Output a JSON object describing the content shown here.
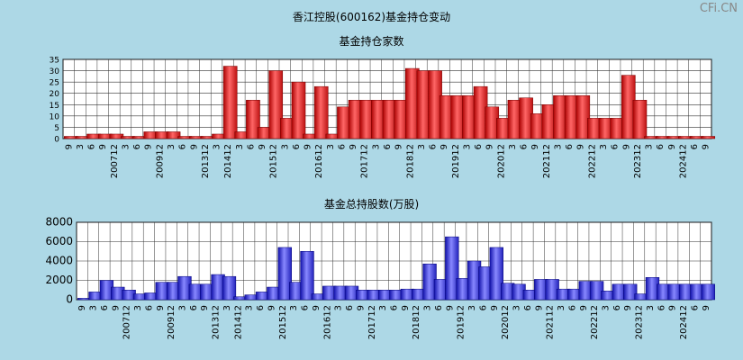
{
  "page": {
    "title": "香江控股(600162)基金持仓变动",
    "brand": "CFi.CN",
    "bg_color": "#add8e6"
  },
  "chart_data": [
    {
      "type": "bar",
      "title": "基金持仓家数",
      "ylim": [
        0,
        35
      ],
      "yticks": [
        0,
        5,
        10,
        15,
        20,
        25,
        30,
        35
      ],
      "grid": true,
      "color": "#ee3333",
      "x": [
        "9",
        "3",
        "6",
        "9",
        "200712",
        "3",
        "6",
        "9",
        "200912",
        "3",
        "6",
        "9",
        "201312",
        "3",
        "201412",
        "3",
        "6",
        "9",
        "201512",
        "3",
        "6",
        "9",
        "201612",
        "3",
        "6",
        "9",
        "201712",
        "3",
        "6",
        "9",
        "201812",
        "3",
        "6",
        "9",
        "201912",
        "3",
        "6",
        "9",
        "202012",
        "3",
        "6",
        "9",
        "202112",
        "3",
        "6",
        "9",
        "202212",
        "3",
        "6",
        "9",
        "202312",
        "3",
        "6",
        "9",
        "202412",
        "6",
        "9"
      ],
      "values": [
        1,
        1,
        2,
        2,
        2,
        1,
        1,
        3,
        3,
        3,
        1,
        1,
        1,
        2,
        32,
        3,
        17,
        5,
        30,
        9,
        25,
        2,
        23,
        2,
        14,
        17,
        17,
        17,
        17,
        17,
        31,
        30,
        30,
        19,
        19,
        19,
        23,
        14,
        9,
        17,
        18,
        11,
        15,
        19,
        19,
        19,
        9,
        9,
        9,
        28,
        17,
        1,
        1,
        1,
        1,
        1,
        1
      ],
      "xlabel_rule": "every tick"
    },
    {
      "type": "bar",
      "title": "基金总持股数(万股)",
      "ylim": [
        0,
        8000
      ],
      "yticks": [
        0,
        2000,
        4000,
        6000,
        8000
      ],
      "grid": true,
      "color": "#4444dd",
      "x": [
        "9",
        "3",
        "6",
        "9",
        "200712",
        "3",
        "6",
        "9",
        "200912",
        "3",
        "6",
        "9",
        "201312",
        "3",
        "201412",
        "3",
        "6",
        "9",
        "201512",
        "3",
        "6",
        "9",
        "201612",
        "3",
        "6",
        "9",
        "201712",
        "3",
        "6",
        "9",
        "201812",
        "3",
        "6",
        "9",
        "201912",
        "3",
        "6",
        "9",
        "202012",
        "3",
        "6",
        "9",
        "202112",
        "3",
        "6",
        "9",
        "202212",
        "3",
        "6",
        "9",
        "202312",
        "3",
        "6",
        "9",
        "202412",
        "6",
        "9"
      ],
      "values": [
        150,
        800,
        2000,
        1300,
        1000,
        600,
        700,
        1800,
        1800,
        2400,
        1600,
        1600,
        2600,
        2400,
        300,
        500,
        800,
        1300,
        5400,
        1800,
        5000,
        600,
        1400,
        1400,
        1400,
        1000,
        1000,
        1000,
        1000,
        1100,
        1100,
        3700,
        2100,
        6500,
        2200,
        4000,
        3400,
        5400,
        1700,
        1600,
        1000,
        2100,
        2100,
        1100,
        1100,
        1900,
        1900,
        900,
        1600,
        1600,
        600,
        2300,
        1600,
        1600,
        1600,
        1600,
        1600
      ]
    }
  ],
  "axis_labels": {
    "top_ticks": [
      "9",
      "3",
      "6",
      "9",
      "200712",
      "3",
      "6",
      "9",
      "200912",
      "3",
      "6",
      "9",
      "201312",
      "3",
      "201412",
      "3",
      "6",
      "9",
      "201512",
      "3",
      "6",
      "9",
      "201612",
      "3",
      "6",
      "9",
      "201712",
      "3",
      "6",
      "9",
      "201812",
      "3",
      "6",
      "9",
      "201912",
      "3",
      "6",
      "9",
      "202012",
      "3",
      "6",
      "9",
      "202112",
      "3",
      "6",
      "9",
      "202212",
      "3",
      "6",
      "9",
      "202312",
      "3",
      "6",
      "9",
      "202412",
      "6",
      "9"
    ]
  }
}
